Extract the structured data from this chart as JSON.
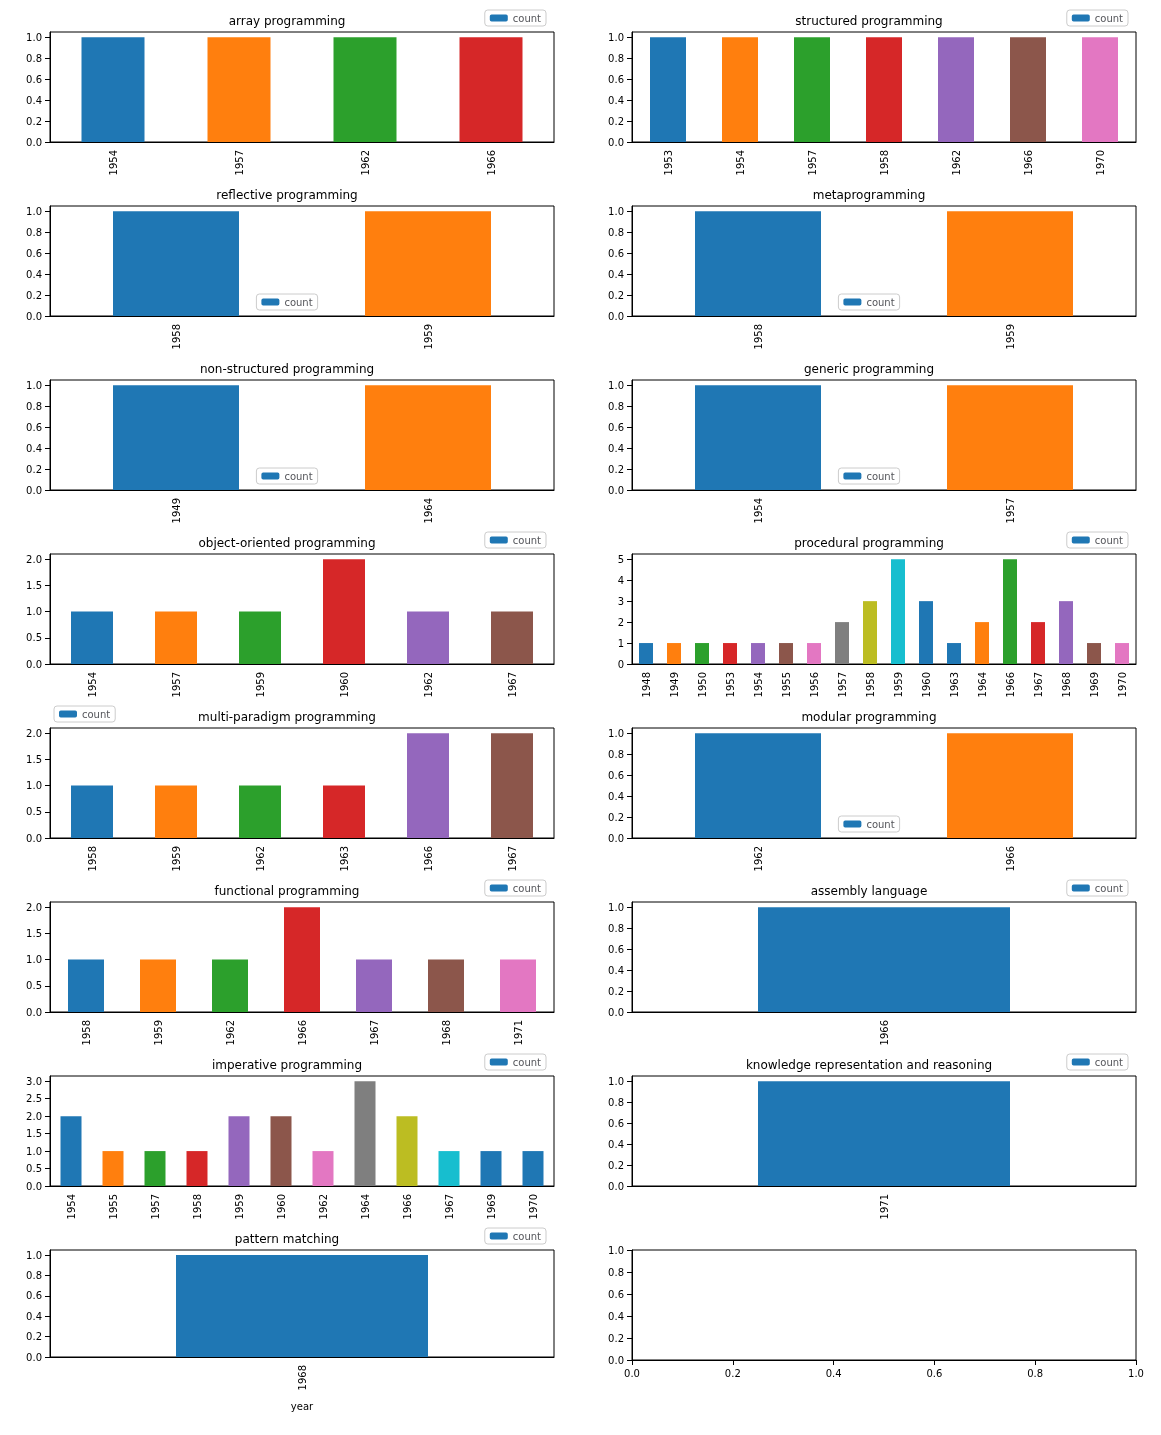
{
  "chart_data": [
    {
      "type": "bar",
      "title": "array programming",
      "categories": [
        "1954",
        "1957",
        "1962",
        "1966"
      ],
      "series": [
        {
          "name": "count",
          "color": "#1f77b4",
          "values": [
            1,
            1,
            1,
            1
          ],
          "colors": [
            "#1f77b4",
            "#ff7f0e",
            "#2ca02c",
            "#d62728"
          ]
        }
      ],
      "ylim": [
        0,
        1.05
      ],
      "yticks": [
        {
          "value": 0,
          "label": "0.0"
        },
        {
          "value": 0.2,
          "label": "0.2"
        },
        {
          "value": 0.4,
          "label": "0.4"
        },
        {
          "value": 0.6,
          "label": "0.6"
        },
        {
          "value": 0.8,
          "label": "0.8"
        },
        {
          "value": 1,
          "label": "1.0"
        }
      ],
      "legend": "top right"
    },
    {
      "type": "bar",
      "title": "structured programming",
      "categories": [
        "1953",
        "1954",
        "1957",
        "1958",
        "1962",
        "1966",
        "1970"
      ],
      "series": [
        {
          "name": "count",
          "color": "#1f77b4",
          "values": [
            1,
            1,
            1,
            1,
            1,
            1,
            1
          ],
          "colors": [
            "#1f77b4",
            "#ff7f0e",
            "#2ca02c",
            "#d62728",
            "#9467bd",
            "#8c564b",
            "#e377c2"
          ]
        }
      ],
      "ylim": [
        0,
        1.05
      ],
      "yticks": [
        {
          "value": 0,
          "label": "0.0"
        },
        {
          "value": 0.2,
          "label": "0.2"
        },
        {
          "value": 0.4,
          "label": "0.4"
        },
        {
          "value": 0.6,
          "label": "0.6"
        },
        {
          "value": 0.8,
          "label": "0.8"
        },
        {
          "value": 1,
          "label": "1.0"
        }
      ],
      "legend": "top right"
    },
    {
      "type": "bar",
      "title": "reflective programming",
      "categories": [
        "1958",
        "1959"
      ],
      "series": [
        {
          "name": "count",
          "color": "#1f77b4",
          "values": [
            1,
            1
          ],
          "colors": [
            "#1f77b4",
            "#ff7f0e"
          ]
        }
      ],
      "ylim": [
        0,
        1.05
      ],
      "yticks": [
        {
          "value": 0,
          "label": "0.0"
        },
        {
          "value": 0.2,
          "label": "0.2"
        },
        {
          "value": 0.4,
          "label": "0.4"
        },
        {
          "value": 0.6,
          "label": "0.6"
        },
        {
          "value": 0.8,
          "label": "0.8"
        },
        {
          "value": 1,
          "label": "1.0"
        }
      ],
      "legend": "bottom"
    },
    {
      "type": "bar",
      "title": "metaprogramming",
      "categories": [
        "1958",
        "1959"
      ],
      "series": [
        {
          "name": "count",
          "color": "#1f77b4",
          "values": [
            1,
            1
          ],
          "colors": [
            "#1f77b4",
            "#ff7f0e"
          ]
        }
      ],
      "ylim": [
        0,
        1.05
      ],
      "yticks": [
        {
          "value": 0,
          "label": "0.0"
        },
        {
          "value": 0.2,
          "label": "0.2"
        },
        {
          "value": 0.4,
          "label": "0.4"
        },
        {
          "value": 0.6,
          "label": "0.6"
        },
        {
          "value": 0.8,
          "label": "0.8"
        },
        {
          "value": 1,
          "label": "1.0"
        }
      ],
      "legend": "bottom"
    },
    {
      "type": "bar",
      "title": "non-structured programming",
      "categories": [
        "1949",
        "1964"
      ],
      "series": [
        {
          "name": "count",
          "color": "#1f77b4",
          "values": [
            1,
            1
          ],
          "colors": [
            "#1f77b4",
            "#ff7f0e"
          ]
        }
      ],
      "ylim": [
        0,
        1.05
      ],
      "yticks": [
        {
          "value": 0,
          "label": "0.0"
        },
        {
          "value": 0.2,
          "label": "0.2"
        },
        {
          "value": 0.4,
          "label": "0.4"
        },
        {
          "value": 0.6,
          "label": "0.6"
        },
        {
          "value": 0.8,
          "label": "0.8"
        },
        {
          "value": 1,
          "label": "1.0"
        }
      ],
      "legend": "bottom"
    },
    {
      "type": "bar",
      "title": "generic programming",
      "categories": [
        "1954",
        "1957"
      ],
      "series": [
        {
          "name": "count",
          "color": "#1f77b4",
          "values": [
            1,
            1
          ],
          "colors": [
            "#1f77b4",
            "#ff7f0e"
          ]
        }
      ],
      "ylim": [
        0,
        1.05
      ],
      "yticks": [
        {
          "value": 0,
          "label": "0.0"
        },
        {
          "value": 0.2,
          "label": "0.2"
        },
        {
          "value": 0.4,
          "label": "0.4"
        },
        {
          "value": 0.6,
          "label": "0.6"
        },
        {
          "value": 0.8,
          "label": "0.8"
        },
        {
          "value": 1,
          "label": "1.0"
        }
      ],
      "legend": "bottom"
    },
    {
      "type": "bar",
      "title": "object-oriented programming",
      "categories": [
        "1954",
        "1957",
        "1959",
        "1960",
        "1962",
        "1967"
      ],
      "series": [
        {
          "name": "count",
          "color": "#1f77b4",
          "values": [
            1,
            1,
            1,
            2,
            1,
            1
          ],
          "colors": [
            "#1f77b4",
            "#ff7f0e",
            "#2ca02c",
            "#d62728",
            "#9467bd",
            "#8c564b"
          ]
        }
      ],
      "ylim": [
        0,
        2.1
      ],
      "yticks": [
        {
          "value": 0,
          "label": "0.0"
        },
        {
          "value": 0.5,
          "label": "0.5"
        },
        {
          "value": 1,
          "label": "1.0"
        },
        {
          "value": 1.5,
          "label": "1.5"
        },
        {
          "value": 2,
          "label": "2.0"
        }
      ],
      "legend": "top right"
    },
    {
      "type": "bar",
      "title": "procedural programming",
      "categories": [
        "1948",
        "1949",
        "1950",
        "1953",
        "1954",
        "1955",
        "1956",
        "1957",
        "1958",
        "1959",
        "1960",
        "1963",
        "1964",
        "1966",
        "1967",
        "1968",
        "1969",
        "1970"
      ],
      "series": [
        {
          "name": "count",
          "color": "#1f77b4",
          "values": [
            1,
            1,
            1,
            1,
            1,
            1,
            1,
            2,
            3,
            5,
            3,
            1,
            2,
            5,
            2,
            3,
            1,
            1
          ],
          "colors": [
            "#1f77b4",
            "#ff7f0e",
            "#2ca02c",
            "#d62728",
            "#9467bd",
            "#8c564b",
            "#e377c2",
            "#7f7f7f",
            "#bcbd22",
            "#17becf",
            "#1f77b4",
            "#1f77b4",
            "#ff7f0e",
            "#2ca02c",
            "#d62728",
            "#9467bd",
            "#8c564b",
            "#e377c2"
          ]
        }
      ],
      "ylim": [
        0,
        5.25
      ],
      "yticks": [
        0,
        1,
        2,
        3,
        4,
        5
      ],
      "legend": "top right"
    },
    {
      "type": "bar",
      "title": "multi-paradigm programming",
      "categories": [
        "1958",
        "1959",
        "1962",
        "1963",
        "1966",
        "1967"
      ],
      "series": [
        {
          "name": "count",
          "color": "#1f77b4",
          "values": [
            1,
            1,
            1,
            1,
            2,
            2
          ],
          "colors": [
            "#1f77b4",
            "#ff7f0e",
            "#2ca02c",
            "#d62728",
            "#9467bd",
            "#8c564b"
          ]
        }
      ],
      "ylim": [
        0,
        2.1
      ],
      "yticks": [
        {
          "value": 0,
          "label": "0.0"
        },
        {
          "value": 0.5,
          "label": "0.5"
        },
        {
          "value": 1,
          "label": "1.0"
        },
        {
          "value": 1.5,
          "label": "1.5"
        },
        {
          "value": 2,
          "label": "2.0"
        }
      ],
      "legend": "top left"
    },
    {
      "type": "bar",
      "title": "modular programming",
      "categories": [
        "1962",
        "1966"
      ],
      "series": [
        {
          "name": "count",
          "color": "#1f77b4",
          "values": [
            1,
            1
          ],
          "colors": [
            "#1f77b4",
            "#ff7f0e"
          ]
        }
      ],
      "ylim": [
        0,
        1.05
      ],
      "yticks": [
        {
          "value": 0,
          "label": "0.0"
        },
        {
          "value": 0.2,
          "label": "0.2"
        },
        {
          "value": 0.4,
          "label": "0.4"
        },
        {
          "value": 0.6,
          "label": "0.6"
        },
        {
          "value": 0.8,
          "label": "0.8"
        },
        {
          "value": 1,
          "label": "1.0"
        }
      ],
      "legend": "bottom"
    },
    {
      "type": "bar",
      "title": "functional programming",
      "categories": [
        "1958",
        "1959",
        "1962",
        "1966",
        "1967",
        "1968",
        "1971"
      ],
      "series": [
        {
          "name": "count",
          "color": "#1f77b4",
          "values": [
            1,
            1,
            1,
            2,
            1,
            1,
            1
          ],
          "colors": [
            "#1f77b4",
            "#ff7f0e",
            "#2ca02c",
            "#d62728",
            "#9467bd",
            "#8c564b",
            "#e377c2"
          ]
        }
      ],
      "ylim": [
        0,
        2.1
      ],
      "yticks": [
        {
          "value": 0,
          "label": "0.0"
        },
        {
          "value": 0.5,
          "label": "0.5"
        },
        {
          "value": 1,
          "label": "1.0"
        },
        {
          "value": 1.5,
          "label": "1.5"
        },
        {
          "value": 2,
          "label": "2.0"
        }
      ],
      "legend": "top right"
    },
    {
      "type": "bar",
      "title": "assembly language",
      "categories": [
        "1966"
      ],
      "series": [
        {
          "name": "count",
          "color": "#1f77b4",
          "values": [
            1
          ],
          "colors": [
            "#1f77b4"
          ]
        }
      ],
      "ylim": [
        0,
        1.05
      ],
      "yticks": [
        {
          "value": 0,
          "label": "0.0"
        },
        {
          "value": 0.2,
          "label": "0.2"
        },
        {
          "value": 0.4,
          "label": "0.4"
        },
        {
          "value": 0.6,
          "label": "0.6"
        },
        {
          "value": 0.8,
          "label": "0.8"
        },
        {
          "value": 1,
          "label": "1.0"
        }
      ],
      "legend": "top right"
    },
    {
      "type": "bar",
      "title": "imperative programming",
      "categories": [
        "1954",
        "1955",
        "1957",
        "1958",
        "1959",
        "1960",
        "1962",
        "1964",
        "1966",
        "1967",
        "1969",
        "1970"
      ],
      "series": [
        {
          "name": "count",
          "color": "#1f77b4",
          "values": [
            2,
            1,
            1,
            1,
            2,
            2,
            1,
            3,
            2,
            1,
            1,
            1
          ],
          "colors": [
            "#1f77b4",
            "#ff7f0e",
            "#2ca02c",
            "#d62728",
            "#9467bd",
            "#8c564b",
            "#e377c2",
            "#7f7f7f",
            "#bcbd22",
            "#17becf",
            "#1f77b4",
            "#1f77b4"
          ]
        }
      ],
      "ylim": [
        0,
        3.15
      ],
      "yticks": [
        {
          "value": 0,
          "label": "0.0"
        },
        {
          "value": 0.5,
          "label": "0.5"
        },
        {
          "value": 1,
          "label": "1.0"
        },
        {
          "value": 1.5,
          "label": "1.5"
        },
        {
          "value": 2,
          "label": "2.0"
        },
        {
          "value": 2.5,
          "label": "2.5"
        },
        {
          "value": 3,
          "label": "3.0"
        }
      ],
      "legend": "top right"
    },
    {
      "type": "bar",
      "title": "knowledge representation and reasoning",
      "categories": [
        "1971"
      ],
      "series": [
        {
          "name": "count",
          "color": "#1f77b4",
          "values": [
            1
          ],
          "colors": [
            "#1f77b4"
          ]
        }
      ],
      "ylim": [
        0,
        1.05
      ],
      "yticks": [
        {
          "value": 0,
          "label": "0.0"
        },
        {
          "value": 0.2,
          "label": "0.2"
        },
        {
          "value": 0.4,
          "label": "0.4"
        },
        {
          "value": 0.6,
          "label": "0.6"
        },
        {
          "value": 0.8,
          "label": "0.8"
        },
        {
          "value": 1,
          "label": "1.0"
        }
      ],
      "legend": "top right"
    },
    {
      "type": "bar",
      "title": "pattern matching",
      "xlabel": "year",
      "categories": [
        "1968"
      ],
      "series": [
        {
          "name": "count",
          "color": "#1f77b4",
          "values": [
            1
          ],
          "colors": [
            "#1f77b4"
          ]
        }
      ],
      "ylim": [
        0,
        1.05
      ],
      "yticks": [
        {
          "value": 0,
          "label": "0.0"
        },
        {
          "value": 0.2,
          "label": "0.2"
        },
        {
          "value": 0.4,
          "label": "0.4"
        },
        {
          "value": 0.6,
          "label": "0.6"
        },
        {
          "value": 0.8,
          "label": "0.8"
        },
        {
          "value": 1,
          "label": "1.0"
        }
      ],
      "legend": "top right"
    },
    {
      "type": "scatter",
      "xlim": [
        0,
        1
      ],
      "xticks": [
        {
          "value": 0,
          "label": "0.0"
        },
        {
          "value": 0.2,
          "label": "0.2"
        },
        {
          "value": 0.4,
          "label": "0.4"
        },
        {
          "value": 0.6,
          "label": "0.6"
        },
        {
          "value": 0.8,
          "label": "0.8"
        },
        {
          "value": 1,
          "label": "1.0"
        }
      ],
      "ylim": [
        0,
        1
      ],
      "yticks": [
        {
          "value": 0,
          "label": "0.0"
        },
        {
          "value": 0.2,
          "label": "0.2"
        },
        {
          "value": 0.4,
          "label": "0.4"
        },
        {
          "value": 0.6,
          "label": "0.6"
        },
        {
          "value": 0.8,
          "label": "0.8"
        },
        {
          "value": 1,
          "label": "1.0"
        }
      ]
    }
  ]
}
